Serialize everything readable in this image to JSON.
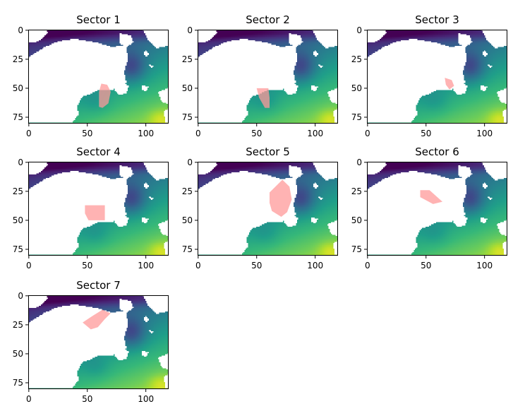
{
  "chart_data": {
    "type": "heatmap",
    "image_shape": {
      "rows": 81,
      "cols": 120
    },
    "xlim": [
      -0.5,
      119.5
    ],
    "ylim": [
      80.5,
      -0.5
    ],
    "x_ticks": [
      0,
      50,
      100
    ],
    "y_ticks": [
      0,
      25,
      50,
      75
    ],
    "x_tick_labels": [
      "0",
      "50",
      "100"
    ],
    "y_tick_labels": [
      "0",
      "25",
      "50",
      "75"
    ],
    "colormap": "viridis",
    "highlight_color": "#ff9a9a",
    "mask_color": "#ffffff",
    "panels": [
      {
        "title": "Sector 1",
        "sector_polygon": [
          [
            62,
            46
          ],
          [
            67,
            47
          ],
          [
            70,
            53
          ],
          [
            68,
            63
          ],
          [
            63,
            67
          ],
          [
            60,
            66
          ],
          [
            60,
            53
          ]
        ]
      },
      {
        "title": "Sector 2",
        "sector_polygon": [
          [
            50,
            50
          ],
          [
            60,
            50
          ],
          [
            61,
            58
          ],
          [
            61,
            67
          ],
          [
            57,
            67
          ],
          [
            52,
            58
          ]
        ]
      },
      {
        "title": "Sector 3",
        "sector_polygon": [
          [
            66,
            41
          ],
          [
            72,
            43
          ],
          [
            74,
            48
          ],
          [
            70,
            51
          ],
          [
            67,
            47
          ]
        ]
      },
      {
        "title": "Sector 4",
        "sector_polygon": [
          [
            48,
            37
          ],
          [
            65,
            37
          ],
          [
            65,
            50
          ],
          [
            51,
            50
          ],
          [
            48,
            44
          ]
        ]
      },
      {
        "title": "Sector 5",
        "sector_polygon": [
          [
            61,
            26
          ],
          [
            72,
            15
          ],
          [
            78,
            21
          ],
          [
            80,
            32
          ],
          [
            76,
            43
          ],
          [
            71,
            47
          ],
          [
            63,
            42
          ],
          [
            61,
            35
          ]
        ]
      },
      {
        "title": "Sector 6",
        "sector_polygon": [
          [
            45,
            24
          ],
          [
            53,
            24
          ],
          [
            64,
            34
          ],
          [
            56,
            36
          ],
          [
            45,
            30
          ]
        ]
      },
      {
        "title": "Sector 7",
        "sector_polygon": [
          [
            46,
            23
          ],
          [
            55,
            17
          ],
          [
            63,
            12
          ],
          [
            70,
            15
          ],
          [
            65,
            20
          ],
          [
            59,
            27
          ],
          [
            53,
            29
          ]
        ]
      }
    ]
  }
}
